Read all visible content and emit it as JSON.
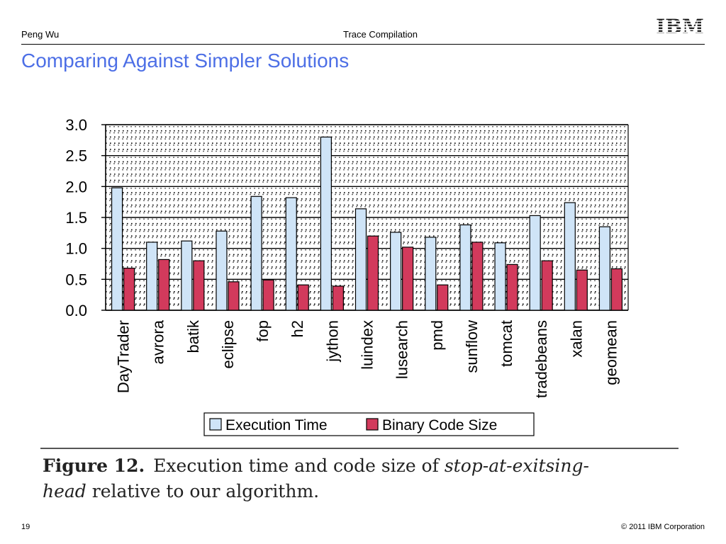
{
  "header": {
    "author": "Peng Wu",
    "center": "Trace Compilation",
    "logo": "IBM"
  },
  "slide_title": "Comparing Against Simpler Solutions",
  "colors": {
    "title": "#4d6fe6",
    "execution_time": "#cfe4f7",
    "binary_code_size": "#d23a5c"
  },
  "chart_data": {
    "type": "bar",
    "title": "",
    "xlabel": "",
    "ylabel": "",
    "ylim": [
      0,
      3.0
    ],
    "yticks": [
      "0.0",
      "0.5",
      "1.0",
      "1.5",
      "2.0",
      "2.5",
      "3.0"
    ],
    "grid": "dotted",
    "legend_position": "bottom",
    "categories": [
      "DayTrader",
      "avrora",
      "batik",
      "eclipse",
      "fop",
      "h2",
      "jython",
      "luindex",
      "lusearch",
      "pmd",
      "sunflow",
      "tomcat",
      "tradebeans",
      "xalan",
      "geomean"
    ],
    "series": [
      {
        "name": "Execution Time",
        "values": [
          1.98,
          1.1,
          1.12,
          1.28,
          1.84,
          1.82,
          2.8,
          1.64,
          1.26,
          1.18,
          1.38,
          1.09,
          1.53,
          1.74,
          1.35
        ]
      },
      {
        "name": "Binary Code Size",
        "values": [
          0.68,
          0.82,
          0.8,
          0.46,
          0.49,
          0.41,
          0.39,
          1.2,
          1.02,
          0.41,
          1.1,
          0.74,
          0.8,
          0.65,
          0.67
        ]
      }
    ]
  },
  "caption": {
    "label": "Figure 12.",
    "text_before": "Execution time and code size of ",
    "emphasis_1": "stop-at-exitsing-",
    "line2_emphasis": "head",
    "text_after": " relative to our algorithm."
  },
  "footer": {
    "page": "19",
    "copyright": "© 2011 IBM Corporation"
  }
}
